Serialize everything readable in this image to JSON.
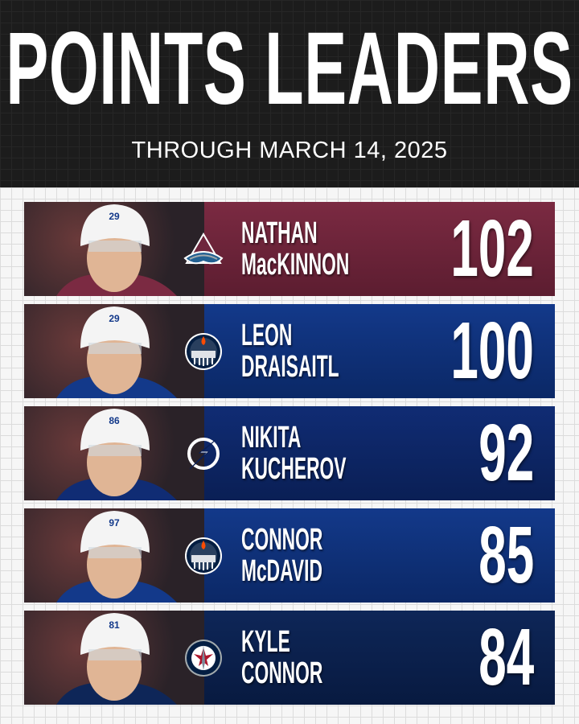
{
  "header": {
    "title": "POINTS LEADERS",
    "subtitle": "THROUGH MARCH 14, 2025"
  },
  "leaders": [
    {
      "first": "NATHAN",
      "last": "MacKINNON",
      "points": "102",
      "team_logo": "avalanche-logo",
      "color": "#7b2a42",
      "color_dark": "#5c1d30",
      "helmet_number": "29"
    },
    {
      "first": "LEON",
      "last": "DRAISAITL",
      "points": "100",
      "team_logo": "oilers-logo",
      "color": "#13398a",
      "color_dark": "#0b2866",
      "helmet_number": "29"
    },
    {
      "first": "NIKITA",
      "last": "KUCHEROV",
      "points": "92",
      "team_logo": "lightning-logo",
      "color": "#102c74",
      "color_dark": "#0a1f55",
      "helmet_number": "86"
    },
    {
      "first": "CONNOR",
      "last": "McDAVID",
      "points": "85",
      "team_logo": "oilers-logo",
      "color": "#13398a",
      "color_dark": "#0b2866",
      "helmet_number": "97"
    },
    {
      "first": "KYLE",
      "last": "CONNOR",
      "points": "84",
      "team_logo": "jets-logo",
      "color": "#0e2658",
      "color_dark": "#081a40",
      "helmet_number": "81"
    }
  ]
}
